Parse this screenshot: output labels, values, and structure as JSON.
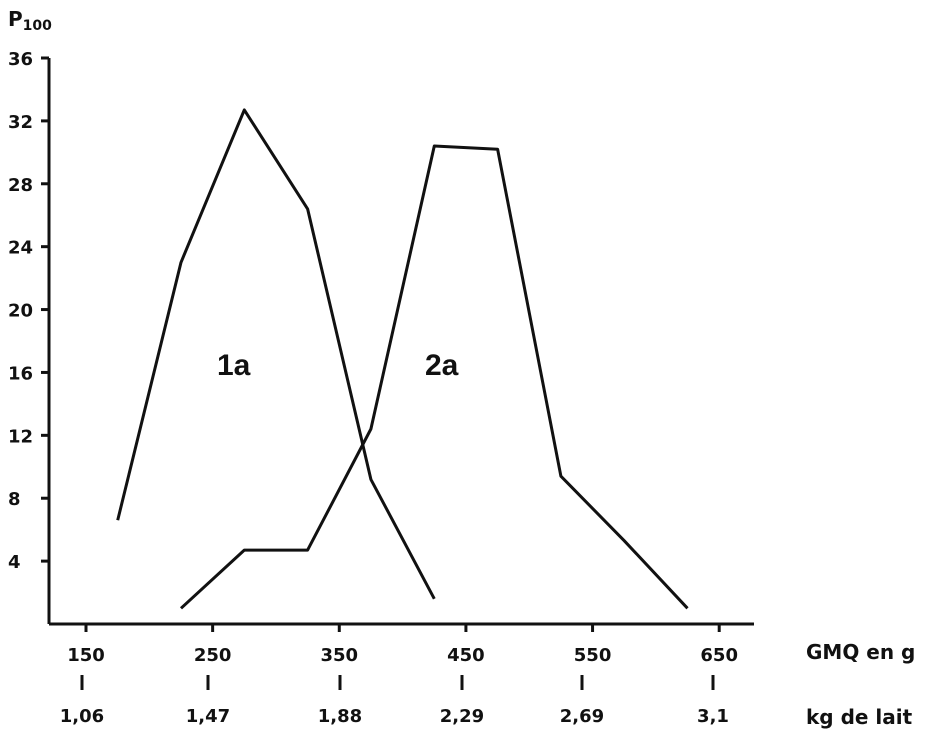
{
  "chart_data": {
    "type": "line",
    "y_axis_title": "P",
    "y_axis_title_sub": "100",
    "x_axis_title": "GMQ en g",
    "x2_axis_title": "kg de lait",
    "ylim": [
      0,
      36
    ],
    "xlim": [
      130,
      680
    ],
    "y_ticks": [
      4,
      8,
      12,
      16,
      20,
      24,
      28,
      32,
      36
    ],
    "x_ticks": [
      150,
      250,
      350,
      450,
      550,
      650
    ],
    "x_tick_labels": [
      "150",
      "250",
      "350",
      "450",
      "550",
      "650"
    ],
    "x2_tick_labels": [
      "1,06",
      "1,47",
      "1,88",
      "2,29",
      "2,69",
      "3,1"
    ],
    "grid": false,
    "series": [
      {
        "name": "1a",
        "x": [
          175,
          225,
          275,
          325,
          375,
          425
        ],
        "y": [
          6.6,
          23,
          32.7,
          26.4,
          9.2,
          1.6
        ]
      },
      {
        "name": "2a",
        "x": [
          225,
          275,
          325,
          375,
          425,
          475,
          525,
          575,
          625
        ],
        "y": [
          1,
          4.7,
          4.7,
          12.4,
          30.4,
          30.2,
          9.4,
          5.3,
          1
        ]
      }
    ],
    "colors": {
      "line": "#111111",
      "axis": "#111111",
      "background": "#ffffff"
    }
  }
}
